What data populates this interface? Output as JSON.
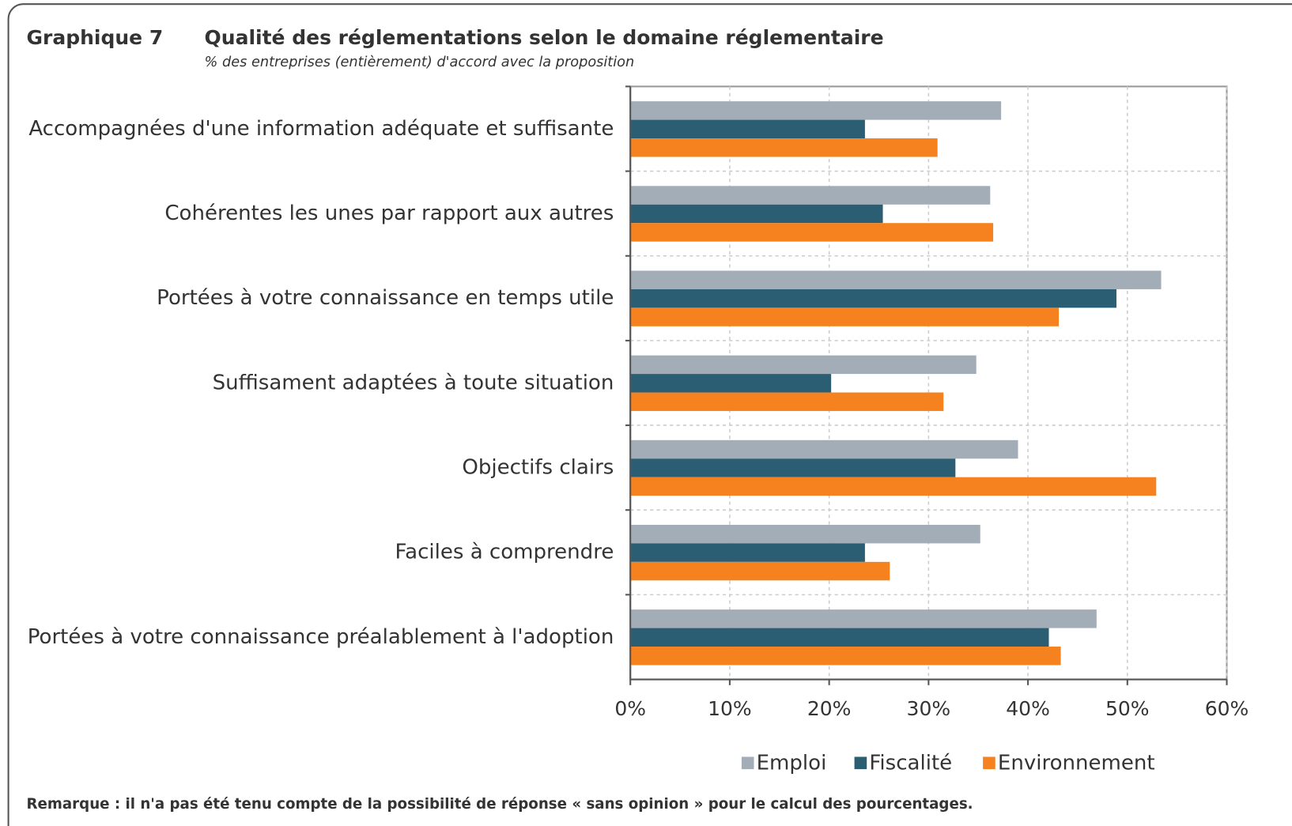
{
  "chart_data": {
    "type": "barh",
    "label": "Graphique 7",
    "title": "Qualité des réglementations selon le domaine réglementaire",
    "subtitle": "% des entreprises (entièrement) d'accord avec la proposition",
    "categories": [
      "Accompagnées d'une information adéquate et suffisante",
      "Cohérentes les unes par rapport aux autres",
      "Portées à votre connaissance en temps utile",
      "Suffisament adaptées à toute situation",
      "Objectifs clairs",
      "Faciles à comprendre",
      "Portées à votre connaissance préalablement à l'adoption"
    ],
    "series": [
      {
        "name": "Emploi",
        "color": "#a3adb8",
        "values": [
          37.3,
          36.2,
          53.4,
          34.8,
          39.0,
          35.2,
          46.9
        ]
      },
      {
        "name": "Fiscalité",
        "color": "#2b5d73",
        "values": [
          23.6,
          25.4,
          48.9,
          20.2,
          32.7,
          23.6,
          42.1
        ]
      },
      {
        "name": "Environnement",
        "color": "#f5821f",
        "values": [
          30.9,
          36.5,
          43.1,
          31.5,
          52.9,
          26.1,
          43.3
        ]
      }
    ],
    "xlim": [
      0,
      60
    ],
    "xticks": [
      {
        "value": 0,
        "label": "0%"
      },
      {
        "value": 10,
        "label": "10%"
      },
      {
        "value": 20,
        "label": "20%"
      },
      {
        "value": 30,
        "label": "30%"
      },
      {
        "value": 40,
        "label": "40%"
      },
      {
        "value": 50,
        "label": "50%"
      },
      {
        "value": 60,
        "label": "60%"
      }
    ],
    "grid": true,
    "legend": "bottom",
    "note": "Remarque : il n'a pas été tenu compte de la possibilité de réponse « sans opinion » pour le calcul des pourcentages."
  }
}
